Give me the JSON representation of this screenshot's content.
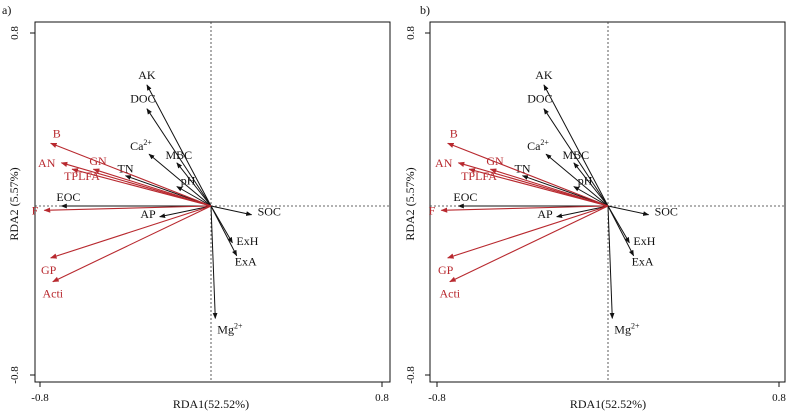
{
  "chart_data": [
    {
      "type": "scatter",
      "subtype": "rda-biplot",
      "panel": "a)",
      "xlabel": "RDA1(52.52%)",
      "ylabel": "RDA2 (5.57%)",
      "xlim": [
        -0.8,
        0.8
      ],
      "ylim": [
        -0.8,
        0.8
      ],
      "xticks": [
        "-0.8",
        "0.8"
      ],
      "yticks": [
        "0.8",
        "-0.8"
      ],
      "series": [
        {
          "name": "environmental factors",
          "color": "#111111",
          "vectors": [
            {
              "label": "AK",
              "x": -0.3,
              "y": 0.56
            },
            {
              "label": "DOC",
              "x": -0.3,
              "y": 0.45
            },
            {
              "label": "Ca",
              "sup": "2+",
              "x": -0.29,
              "y": 0.24
            },
            {
              "label": "MBC",
              "x": -0.16,
              "y": 0.2
            },
            {
              "label": "TN",
              "x": -0.4,
              "y": 0.14
            },
            {
              "label": "pH",
              "x": -0.16,
              "y": 0.09
            },
            {
              "label": "EOC",
              "x": -0.7,
              "y": 0.0
            },
            {
              "label": "AP",
              "x": -0.24,
              "y": -0.05
            },
            {
              "label": "SOC",
              "x": 0.19,
              "y": -0.04
            },
            {
              "label": "ExH",
              "x": 0.1,
              "y": -0.17
            },
            {
              "label": "ExA",
              "x": 0.12,
              "y": -0.23
            },
            {
              "label": "Mg",
              "sup": "2+",
              "x": 0.02,
              "y": -0.52
            }
          ]
        },
        {
          "name": "microbial groups",
          "color": "#b8292f",
          "vectors": [
            {
              "label": "B",
              "x": -0.75,
              "y": 0.29
            },
            {
              "label": "AN",
              "x": -0.7,
              "y": 0.2
            },
            {
              "label": "GN",
              "x": -0.55,
              "y": 0.17
            },
            {
              "label": "TPLFA",
              "x": -0.65,
              "y": 0.17
            },
            {
              "label": "F",
              "x": -0.78,
              "y": -0.02
            },
            {
              "label": "GP",
              "x": -0.75,
              "y": -0.24
            },
            {
              "label": "Acti",
              "x": -0.74,
              "y": -0.35
            }
          ]
        }
      ]
    },
    {
      "type": "scatter",
      "subtype": "rda-biplot",
      "panel": "b)",
      "xlabel": "RDA1(52.52%)",
      "ylabel": "RDA2 (5.57%)",
      "xlim": [
        -0.8,
        0.8
      ],
      "ylim": [
        -0.8,
        0.8
      ],
      "xticks": [
        "-0.8",
        "0.8"
      ],
      "yticks": [
        "0.8",
        "-0.8"
      ],
      "series": [
        {
          "name": "environmental factors",
          "color": "#111111",
          "vectors": [
            {
              "label": "AK",
              "x": -0.3,
              "y": 0.56
            },
            {
              "label": "DOC",
              "x": -0.3,
              "y": 0.45
            },
            {
              "label": "Ca",
              "sup": "2+",
              "x": -0.29,
              "y": 0.24
            },
            {
              "label": "MBC",
              "x": -0.16,
              "y": 0.2
            },
            {
              "label": "TN",
              "x": -0.4,
              "y": 0.14
            },
            {
              "label": "pH",
              "x": -0.16,
              "y": 0.09
            },
            {
              "label": "EOC",
              "x": -0.7,
              "y": 0.0
            },
            {
              "label": "AP",
              "x": -0.24,
              "y": -0.05
            },
            {
              "label": "SOC",
              "x": 0.19,
              "y": -0.04
            },
            {
              "label": "ExH",
              "x": 0.1,
              "y": -0.17
            },
            {
              "label": "ExA",
              "x": 0.12,
              "y": -0.23
            },
            {
              "label": "Mg",
              "sup": "2+",
              "x": 0.02,
              "y": -0.52
            }
          ]
        },
        {
          "name": "microbial groups",
          "color": "#b8292f",
          "vectors": [
            {
              "label": "B",
              "x": -0.75,
              "y": 0.29
            },
            {
              "label": "AN",
              "x": -0.7,
              "y": 0.2
            },
            {
              "label": "GN",
              "x": -0.55,
              "y": 0.17
            },
            {
              "label": "TPLFA",
              "x": -0.65,
              "y": 0.17
            },
            {
              "label": "F",
              "x": -0.78,
              "y": -0.02
            },
            {
              "label": "GP",
              "x": -0.75,
              "y": -0.24
            },
            {
              "label": "Acti",
              "x": -0.74,
              "y": -0.35
            }
          ]
        }
      ]
    }
  ]
}
